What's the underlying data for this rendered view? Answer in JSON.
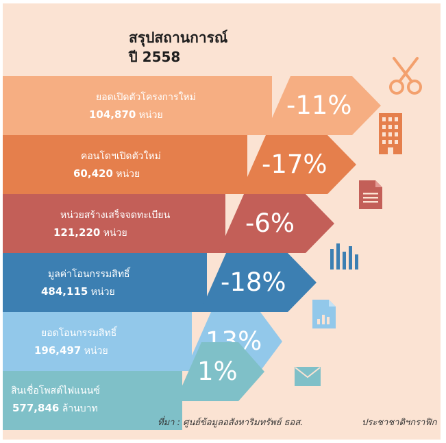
{
  "title": {
    "line1": "สรุปสถานการณ์",
    "line2": "ปี 2558"
  },
  "colors": {
    "background": "#fbe3d3",
    "row1": "#f6ae82",
    "row2": "#e57f4c",
    "row3": "#c35f58",
    "row4": "#3c7fb2",
    "row5": "#92c8ea",
    "row6": "#7fc0c8"
  },
  "rows": [
    {
      "label": "ยอดเปิดตัวโครงการใหม่",
      "value": "104,870",
      "unit": "หน่วย",
      "change": "-11%",
      "icon": "scissors-icon"
    },
    {
      "label": "คอนโดฯเปิดตัวใหม่",
      "value": "60,420",
      "unit": "หน่วย",
      "change": "-17%",
      "icon": "building-icon"
    },
    {
      "label": "หน่วยสร้างเสร็จจดทะเบียน",
      "value": "121,220",
      "unit": "หน่วย",
      "change": "-6%",
      "icon": "document-icon"
    },
    {
      "label": "มูลค่าโอนกรรมสิทธิ์",
      "value": "484,115",
      "unit": "หน่วย",
      "change": "-18%",
      "icon": "bar-chart-icon"
    },
    {
      "label": "ยอดโอนกรรมสิทธิ์",
      "value": "196,497",
      "unit": "หน่วย",
      "change": "13%",
      "icon": "chart-file-icon"
    },
    {
      "label": "สินเชื่อโพสต์ไฟแนนซ์",
      "value": "577,846",
      "unit": "ล้านบาท",
      "change": "1%",
      "icon": "envelope-icon"
    }
  ],
  "source": "ที่มา : ศูนย์ข้อมูลอสังหาริมทรัพย์ ธอส.",
  "credit": "ประชาชาติฯกราฟิก"
}
